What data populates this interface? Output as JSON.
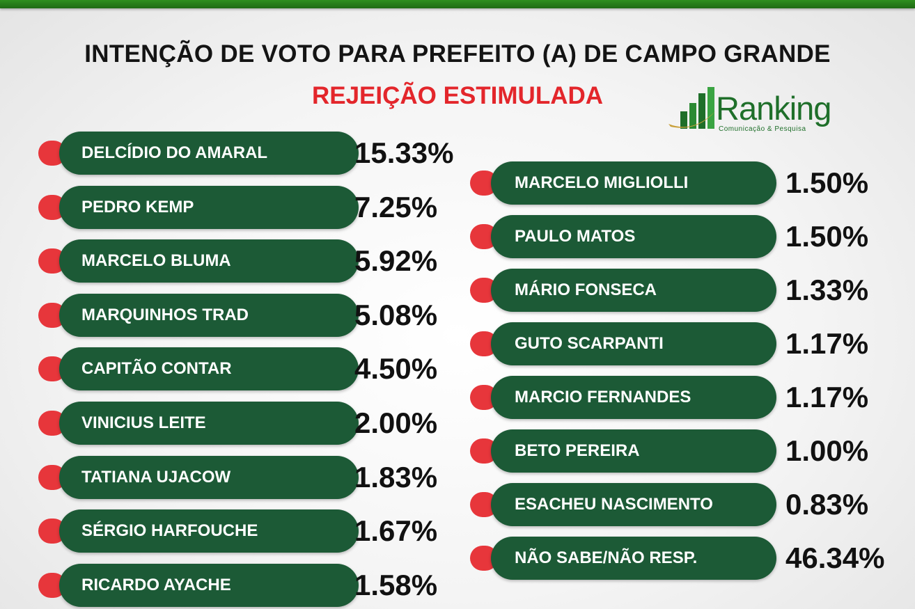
{
  "title": "INTENÇÃO DE VOTO PARA PREFEITO (A) DE CAMPO GRANDE",
  "subtitle": "REJEIÇÃO ESTIMULADA",
  "logo": {
    "word": "Ranking",
    "tagline": "Comunicação & Pesquisa"
  },
  "colors": {
    "pill": "#1c5a36",
    "cap": "#e7363b",
    "subtitle": "#e3262b",
    "topbar": "#2f8f1f"
  },
  "chart_data": {
    "type": "table",
    "title": "INTENÇÃO DE VOTO PARA PREFEITO (A) DE CAMPO GRANDE",
    "subtitle": "REJEIÇÃO ESTIMULADA",
    "columns": [
      [
        {
          "name": "DELCÍDIO DO AMARAL",
          "value": 15.33,
          "label": "15.33%"
        },
        {
          "name": "PEDRO KEMP",
          "value": 7.25,
          "label": "7.25%"
        },
        {
          "name": "MARCELO BLUMA",
          "value": 5.92,
          "label": "5.92%"
        },
        {
          "name": "MARQUINHOS TRAD",
          "value": 5.08,
          "label": "5.08%"
        },
        {
          "name": "CAPITÃO CONTAR",
          "value": 4.5,
          "label": "4.50%"
        },
        {
          "name": "VINICIUS LEITE",
          "value": 2.0,
          "label": "2.00%"
        },
        {
          "name": "TATIANA UJACOW",
          "value": 1.83,
          "label": "1.83%"
        },
        {
          "name": "SÉRGIO HARFOUCHE",
          "value": 1.67,
          "label": "1.67%"
        },
        {
          "name": "RICARDO AYACHE",
          "value": 1.58,
          "label": "1.58%"
        }
      ],
      [
        {
          "name": "MARCELO MIGLIOLLI",
          "value": 1.5,
          "label": "1.50%"
        },
        {
          "name": "PAULO MATOS",
          "value": 1.5,
          "label": "1.50%"
        },
        {
          "name": "MÁRIO FONSECA",
          "value": 1.33,
          "label": "1.33%"
        },
        {
          "name": "GUTO SCARPANTI",
          "value": 1.17,
          "label": "1.17%"
        },
        {
          "name": "MARCIO FERNANDES",
          "value": 1.17,
          "label": "1.17%"
        },
        {
          "name": "BETO PEREIRA",
          "value": 1.0,
          "label": "1.00%"
        },
        {
          "name": "ESACHEU NASCIMENTO",
          "value": 0.83,
          "label": "0.83%"
        },
        {
          "name": "NÃO SABE/NÃO RESP.",
          "value": 46.34,
          "label": "46.34%"
        }
      ]
    ]
  }
}
